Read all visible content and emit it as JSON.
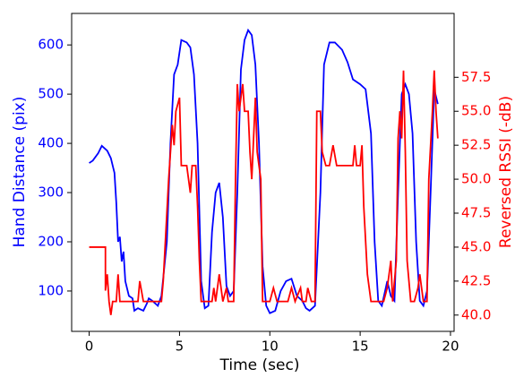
{
  "chart_data": {
    "type": "line",
    "xlabel": "Time (sec)",
    "ylabel": "Hand Distance (pix)",
    "y2label": "Reversed RSSI (-dB)",
    "xlim": [
      -0.97,
      20.2
    ],
    "xticks": [
      0,
      5,
      10,
      15,
      20
    ],
    "ylim": [
      18,
      664
    ],
    "yticks": [
      100,
      200,
      300,
      400,
      500,
      600
    ],
    "y2lim": [
      38.8,
      62.2
    ],
    "y2ticks": [
      {
        "value": 40,
        "label": "40.0"
      },
      42.5,
      {
        "value": 45,
        "label": "45.0"
      },
      47.5,
      {
        "value": 50,
        "label": "50.0"
      },
      52.5,
      {
        "value": 55,
        "label": "55.0"
      },
      57.5
    ],
    "ycolor": "#0000ff",
    "y2color": "#ff0000",
    "series": [
      {
        "name": "Hand Distance",
        "color": "#0000ff",
        "axis": "y",
        "x": [
          0,
          0.2,
          0.5,
          0.7,
          1.0,
          1.2,
          1.4,
          1.5,
          1.6,
          1.7,
          1.8,
          1.9,
          2.0,
          2.2,
          2.4,
          2.5,
          2.7,
          3.0,
          3.2,
          3.3,
          3.5,
          3.8,
          4.0,
          4.3,
          4.5,
          4.7,
          4.9,
          5.1,
          5.4,
          5.6,
          5.8,
          6.0,
          6.2,
          6.4,
          6.6,
          6.8,
          7.0,
          7.2,
          7.4,
          7.6,
          7.8,
          8.0,
          8.2,
          8.4,
          8.6,
          8.8,
          9.0,
          9.2,
          9.4,
          9.6,
          9.8,
          10.0,
          10.3,
          10.6,
          10.9,
          11.2,
          11.5,
          11.8,
          12.0,
          12.2,
          12.5,
          12.8,
          13.0,
          13.3,
          13.6,
          14.0,
          14.3,
          14.6,
          15.0,
          15.3,
          15.6,
          15.8,
          16.0,
          16.2,
          16.5,
          16.7,
          16.9,
          17.1,
          17.3,
          17.5,
          17.7,
          17.9,
          18.1,
          18.3,
          18.5,
          18.7,
          18.9,
          19.1,
          19.3
        ],
        "values": [
          360,
          365,
          380,
          395,
          385,
          370,
          340,
          280,
          200,
          210,
          160,
          180,
          120,
          90,
          85,
          60,
          65,
          60,
          75,
          85,
          80,
          70,
          90,
          200,
          400,
          540,
          560,
          610,
          605,
          595,
          540,
          400,
          120,
          65,
          70,
          220,
          300,
          320,
          250,
          110,
          90,
          100,
          300,
          550,
          610,
          630,
          620,
          560,
          400,
          150,
          70,
          55,
          60,
          100,
          120,
          125,
          90,
          80,
          65,
          60,
          70,
          300,
          560,
          605,
          605,
          590,
          565,
          530,
          520,
          510,
          420,
          200,
          80,
          70,
          120,
          90,
          80,
          300,
          500,
          520,
          500,
          420,
          200,
          80,
          70,
          100,
          300,
          510,
          480
        ]
      },
      {
        "name": "Reversed RSSI",
        "color": "#ff0000",
        "axis": "y2",
        "x": [
          0,
          0.9,
          0.9,
          1.0,
          1.1,
          1.2,
          1.3,
          1.5,
          1.6,
          1.7,
          2.1,
          2.3,
          2.5,
          2.7,
          2.8,
          3.0,
          4.0,
          4.1,
          4.3,
          4.4,
          4.6,
          4.7,
          4.8,
          5.0,
          5.1,
          5.4,
          5.6,
          5.7,
          5.9,
          6.0,
          6.1,
          6.2,
          6.8,
          6.9,
          7.0,
          7.1,
          7.2,
          7.4,
          7.6,
          7.7,
          8.0,
          8.1,
          8.2,
          8.3,
          8.5,
          8.6,
          8.8,
          8.9,
          9.0,
          9.2,
          9.3,
          9.5,
          9.6,
          10.0,
          10.2,
          10.4,
          11.0,
          11.2,
          11.4,
          11.7,
          11.8,
          12.0,
          12.1,
          12.3,
          12.5,
          12.6,
          12.8,
          12.9,
          13.1,
          13.3,
          13.5,
          13.7,
          14.6,
          14.7,
          14.8,
          15.0,
          15.1,
          15.2,
          15.4,
          15.6,
          16.3,
          16.5,
          16.7,
          16.8,
          17.0,
          17.1,
          17.2,
          17.3,
          17.4,
          17.5,
          17.6,
          17.8,
          18.0,
          18.2,
          18.3,
          18.5,
          18.7,
          18.8,
          19.0,
          19.1,
          19.2,
          19.3
        ],
        "values": [
          45,
          45,
          41.8,
          43,
          41,
          40,
          41,
          41,
          43,
          41,
          41,
          41,
          41,
          41,
          42.5,
          41,
          41,
          42.5,
          47.5,
          50,
          54,
          52.5,
          55,
          56,
          51,
          51,
          49,
          51,
          51,
          48,
          44,
          41,
          41,
          42,
          41,
          42,
          43,
          41,
          42,
          41,
          41,
          50,
          57,
          55,
          57,
          55,
          55,
          52,
          50,
          56,
          52,
          50,
          41,
          41,
          42,
          41,
          41,
          42,
          41,
          42,
          41,
          41,
          42,
          41,
          41,
          55,
          55,
          52,
          51,
          51,
          52.5,
          51,
          51,
          52.5,
          51,
          51,
          52.5,
          48,
          43,
          41,
          41,
          42,
          44,
          41,
          44,
          53,
          55,
          53,
          58,
          52,
          44,
          41,
          41,
          42,
          43,
          41,
          41,
          50,
          55,
          58,
          55,
          53
        ]
      }
    ]
  }
}
